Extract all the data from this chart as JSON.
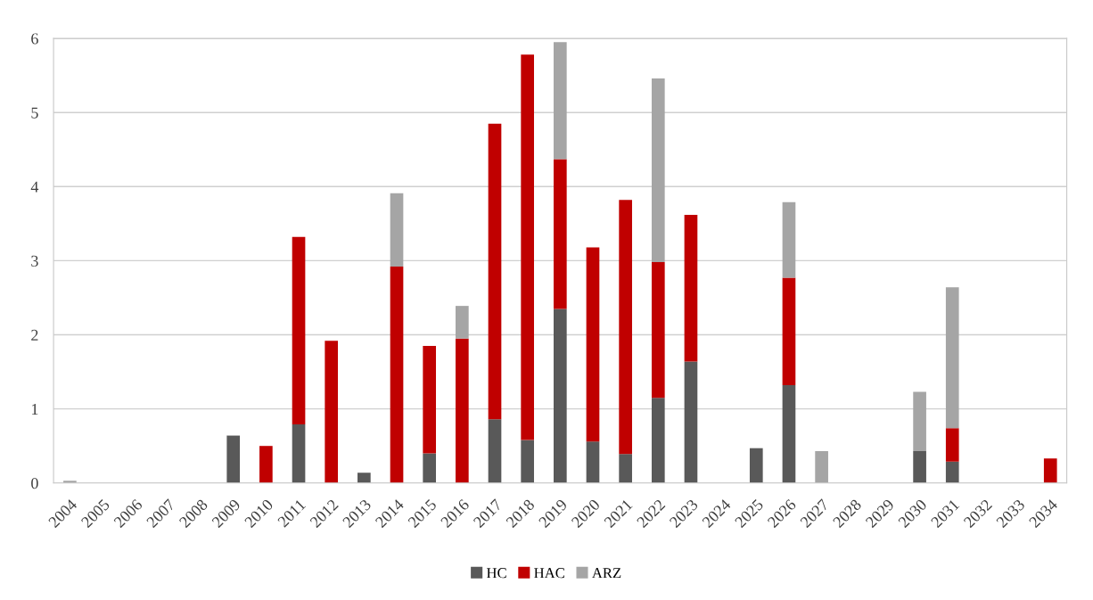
{
  "chart_data": {
    "type": "bar",
    "stacked": true,
    "categories": [
      "2004",
      "2005",
      "2006",
      "2007",
      "2008",
      "2009",
      "2010",
      "2011",
      "2012",
      "2013",
      "2014",
      "2015",
      "2016",
      "2017",
      "2018",
      "2019",
      "2020",
      "2021",
      "2022",
      "2023",
      "2024",
      "2025",
      "2026",
      "2027",
      "2028",
      "2029",
      "2030",
      "2031",
      "2032",
      "2033",
      "2034"
    ],
    "series": [
      {
        "name": "HC",
        "color": "#595959",
        "values": [
          null,
          null,
          null,
          null,
          null,
          0.64,
          null,
          0.79,
          null,
          0.14,
          null,
          0.4,
          null,
          0.86,
          0.58,
          2.35,
          0.56,
          0.39,
          1.15,
          1.64,
          null,
          0.47,
          1.32,
          null,
          null,
          null,
          0.43,
          0.29,
          null,
          null,
          null
        ]
      },
      {
        "name": "HAC",
        "color": "#c00000",
        "values": [
          null,
          null,
          null,
          null,
          null,
          null,
          0.5,
          2.53,
          1.92,
          null,
          2.92,
          1.45,
          1.95,
          3.99,
          5.2,
          2.02,
          2.62,
          3.43,
          1.83,
          1.98,
          null,
          null,
          1.45,
          null,
          null,
          null,
          null,
          0.45,
          null,
          null,
          0.33
        ]
      },
      {
        "name": "ARZ",
        "color": "#a5a5a5",
        "values": [
          0.03,
          null,
          null,
          null,
          null,
          null,
          null,
          null,
          null,
          null,
          0.99,
          null,
          0.44,
          null,
          null,
          1.58,
          null,
          null,
          2.48,
          null,
          null,
          null,
          1.02,
          0.43,
          null,
          null,
          0.8,
          1.9,
          null,
          null,
          null
        ]
      }
    ],
    "ylim": [
      0,
      6
    ],
    "yticks": [
      0,
      1,
      2,
      3,
      4,
      5,
      6
    ],
    "grid": "y",
    "legend": "bottom"
  }
}
